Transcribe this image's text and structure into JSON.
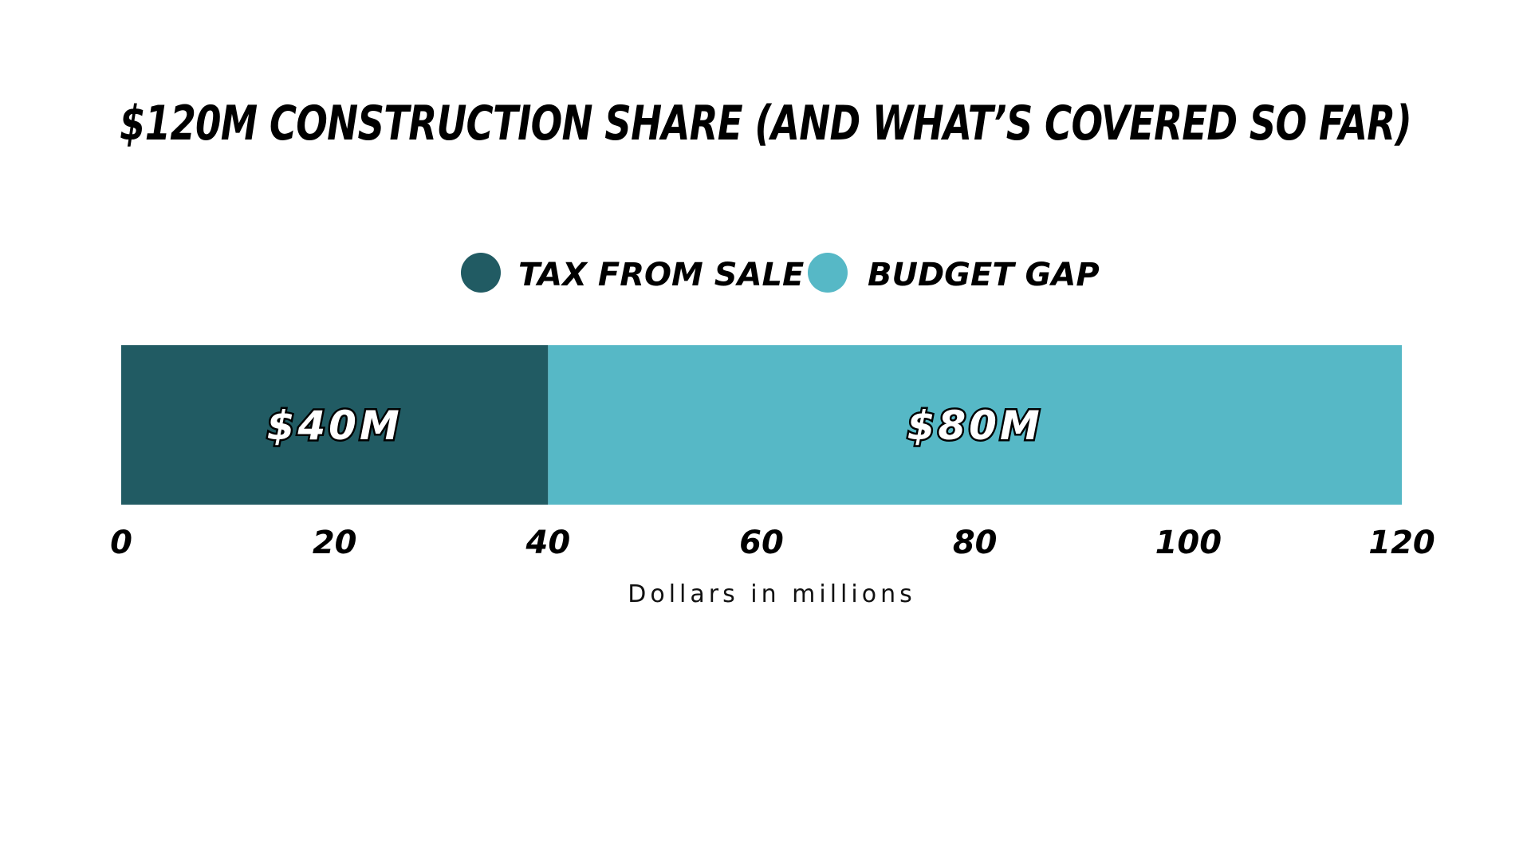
{
  "chart_data": {
    "type": "bar",
    "orientation": "horizontal",
    "stacked": true,
    "title": "$120M CONSTRUCTION SHARE (AND WHAT’S COVERED SO FAR)",
    "xlabel": "Dollars in millions",
    "ylabel": "",
    "xlim": [
      0,
      120
    ],
    "xticks": [
      "0",
      "20",
      "40",
      "60",
      "80",
      "100",
      "120"
    ],
    "grid": false,
    "legend_position": "top-center",
    "series": [
      {
        "name": "TAX FROM SALE",
        "values": [
          40
        ],
        "label": "$40M",
        "color": "#215b63"
      },
      {
        "name": "BUDGET GAP",
        "values": [
          80
        ],
        "label": "$80M",
        "color": "#56b8c6"
      }
    ]
  }
}
